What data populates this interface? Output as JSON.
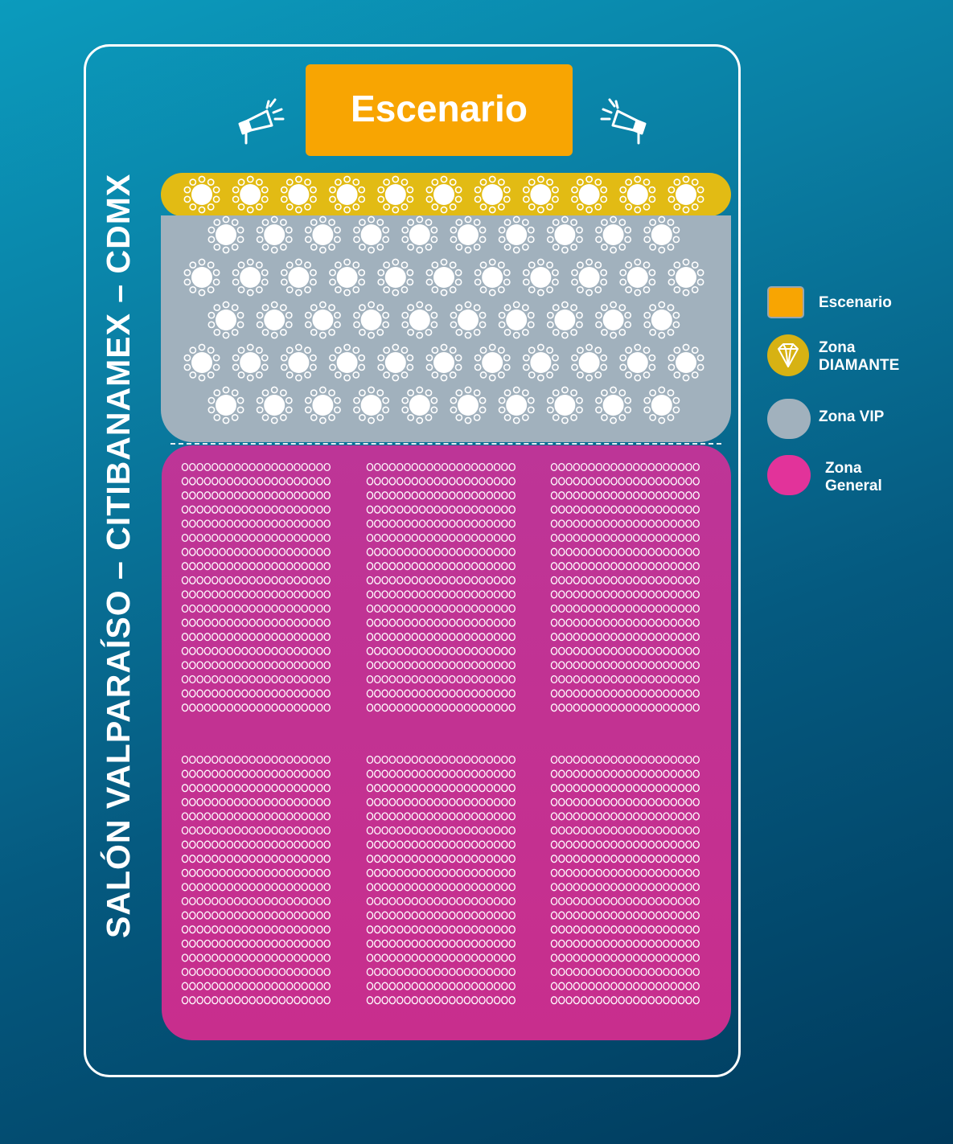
{
  "venue_title": "SALÓN VALPARAÍSO – CITIBANAMEX – CDMX",
  "stage_label": "Escenario",
  "colors": {
    "stage": "#f8a502",
    "diamond": "#e2bb14",
    "vip": "#a1b1bd",
    "general": "#c42f91",
    "seat": "#ffffff"
  },
  "icons": [
    "speaker-left-icon",
    "speaker-right-icon",
    "diamond-icon",
    "table-icon",
    "chair-icon"
  ],
  "zones": {
    "diamond": {
      "tables": 11
    },
    "vip": {
      "rows": [
        10,
        11,
        10,
        11,
        10
      ]
    },
    "general": {
      "blocks": 6,
      "rows_per_block": 18,
      "chairs_per_row": 20
    }
  },
  "legend": {
    "escenario": "Escenario",
    "diamante_line1": "Zona",
    "diamante_line2": "DIAMANTE",
    "vip": "Zona VIP",
    "general_line1": "Zona",
    "general_line2": "General"
  }
}
